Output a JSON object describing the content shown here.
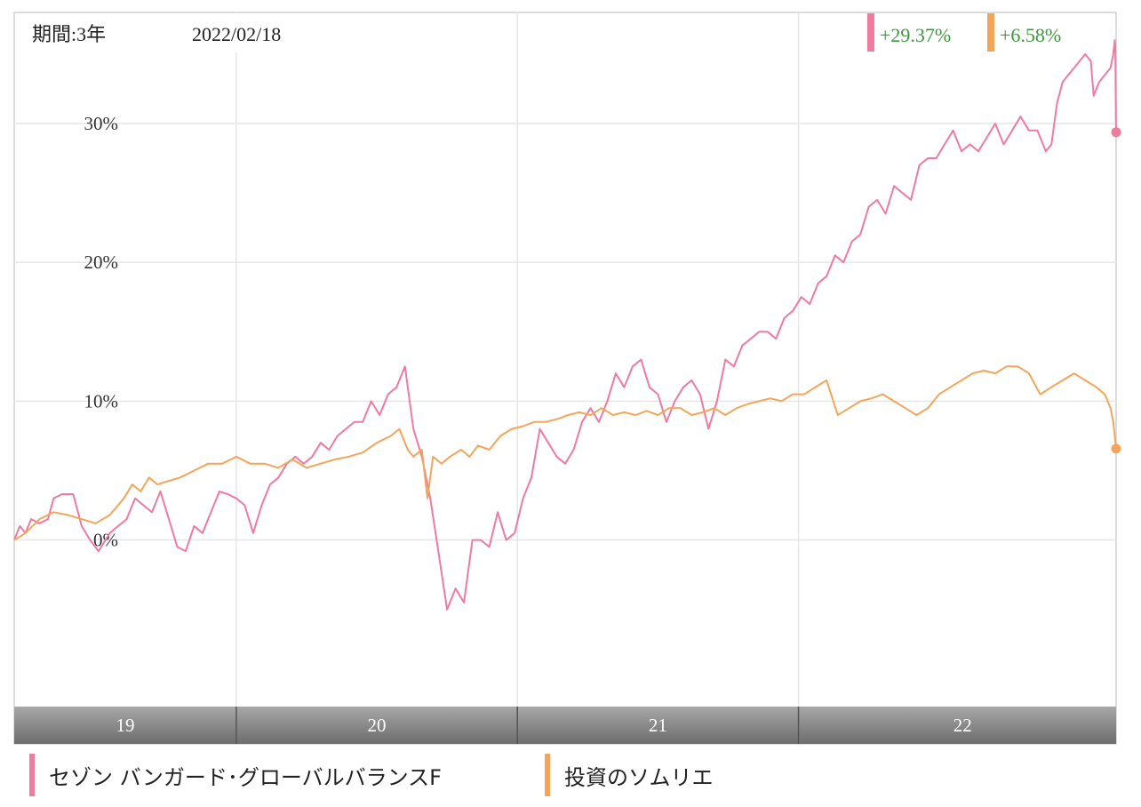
{
  "header": {
    "period_label": "期間:3年",
    "date": "2022/02/18"
  },
  "chart_data": {
    "type": "line",
    "ylim": [
      -12,
      38
    ],
    "yticks": [
      0,
      10,
      20,
      30
    ],
    "ytick_labels": [
      "0%",
      "10%",
      "20%",
      "30%"
    ],
    "xlim": [
      2018.21,
      2022.13
    ],
    "year_ticks": [
      {
        "label": "19",
        "start": 2018.21,
        "end": 2019.0
      },
      {
        "label": "20",
        "start": 2019.0,
        "end": 2020.0
      },
      {
        "label": "21",
        "start": 2020.0,
        "end": 2021.0
      },
      {
        "label": "22",
        "start": 2021.0,
        "end": 2022.13
      }
    ],
    "year_boundaries": [
      2019.0,
      2020.0,
      2021.0
    ],
    "series": [
      {
        "name": "セゾン バンガード･グローバルバランスF",
        "color": "#f07aa0",
        "final_return": "+29.37%",
        "points": [
          [
            2018.21,
            0.0
          ],
          [
            2018.23,
            1.0
          ],
          [
            2018.25,
            0.5
          ],
          [
            2018.27,
            1.5
          ],
          [
            2018.3,
            1.2
          ],
          [
            2018.33,
            1.5
          ],
          [
            2018.35,
            3.0
          ],
          [
            2018.38,
            3.3
          ],
          [
            2018.42,
            3.3
          ],
          [
            2018.45,
            1.0
          ],
          [
            2018.48,
            0.0
          ],
          [
            2018.51,
            -0.8
          ],
          [
            2018.55,
            0.5
          ],
          [
            2018.58,
            1.0
          ],
          [
            2018.61,
            1.5
          ],
          [
            2018.64,
            3.0
          ],
          [
            2018.67,
            2.5
          ],
          [
            2018.7,
            2.0
          ],
          [
            2018.73,
            3.5
          ],
          [
            2018.76,
            1.5
          ],
          [
            2018.79,
            -0.5
          ],
          [
            2018.82,
            -0.8
          ],
          [
            2018.85,
            1.0
          ],
          [
            2018.88,
            0.5
          ],
          [
            2018.91,
            2.0
          ],
          [
            2018.94,
            3.5
          ],
          [
            2018.97,
            3.3
          ],
          [
            2019.0,
            3.0
          ],
          [
            2019.03,
            2.5
          ],
          [
            2019.06,
            0.5
          ],
          [
            2019.09,
            2.5
          ],
          [
            2019.12,
            4.0
          ],
          [
            2019.15,
            4.5
          ],
          [
            2019.18,
            5.5
          ],
          [
            2019.21,
            6.0
          ],
          [
            2019.24,
            5.5
          ],
          [
            2019.27,
            6.0
          ],
          [
            2019.3,
            7.0
          ],
          [
            2019.33,
            6.5
          ],
          [
            2019.36,
            7.5
          ],
          [
            2019.39,
            8.0
          ],
          [
            2019.42,
            8.5
          ],
          [
            2019.45,
            8.5
          ],
          [
            2019.48,
            10.0
          ],
          [
            2019.51,
            9.0
          ],
          [
            2019.54,
            10.5
          ],
          [
            2019.57,
            11.0
          ],
          [
            2019.6,
            12.5
          ],
          [
            2019.63,
            8.0
          ],
          [
            2019.66,
            6.0
          ],
          [
            2019.69,
            3.0
          ],
          [
            2019.72,
            -1.0
          ],
          [
            2019.75,
            -5.0
          ],
          [
            2019.78,
            -3.5
          ],
          [
            2019.81,
            -4.5
          ],
          [
            2019.84,
            0.0
          ],
          [
            2019.87,
            0.0
          ],
          [
            2019.9,
            -0.5
          ],
          [
            2019.93,
            2.0
          ],
          [
            2019.96,
            0.0
          ],
          [
            2019.99,
            0.5
          ],
          [
            2020.02,
            3.0
          ],
          [
            2020.05,
            4.5
          ],
          [
            2020.08,
            8.0
          ],
          [
            2020.11,
            7.0
          ],
          [
            2020.14,
            6.0
          ],
          [
            2020.17,
            5.5
          ],
          [
            2020.2,
            6.5
          ],
          [
            2020.23,
            8.5
          ],
          [
            2020.26,
            9.5
          ],
          [
            2020.29,
            8.5
          ],
          [
            2020.32,
            10.0
          ],
          [
            2020.35,
            12.0
          ],
          [
            2020.38,
            11.0
          ],
          [
            2020.41,
            12.5
          ],
          [
            2020.44,
            13.0
          ],
          [
            2020.47,
            11.0
          ],
          [
            2020.5,
            10.5
          ],
          [
            2020.53,
            8.5
          ],
          [
            2020.56,
            10.0
          ],
          [
            2020.59,
            11.0
          ],
          [
            2020.62,
            11.5
          ],
          [
            2020.65,
            10.5
          ],
          [
            2020.68,
            8.0
          ],
          [
            2020.71,
            10.0
          ],
          [
            2020.74,
            13.0
          ],
          [
            2020.77,
            12.5
          ],
          [
            2020.8,
            14.0
          ],
          [
            2020.83,
            14.5
          ],
          [
            2020.86,
            15.0
          ],
          [
            2020.89,
            15.0
          ],
          [
            2020.92,
            14.5
          ],
          [
            2020.95,
            16.0
          ],
          [
            2020.98,
            16.5
          ],
          [
            2021.01,
            17.5
          ],
          [
            2021.04,
            17.0
          ],
          [
            2021.07,
            18.5
          ],
          [
            2021.1,
            19.0
          ],
          [
            2021.13,
            20.5
          ],
          [
            2021.16,
            20.0
          ],
          [
            2021.19,
            21.5
          ],
          [
            2021.22,
            22.0
          ],
          [
            2021.25,
            24.0
          ],
          [
            2021.28,
            24.5
          ],
          [
            2021.31,
            23.5
          ],
          [
            2021.34,
            25.5
          ],
          [
            2021.37,
            25.0
          ],
          [
            2021.4,
            24.5
          ],
          [
            2021.43,
            27.0
          ],
          [
            2021.46,
            27.5
          ],
          [
            2021.49,
            27.5
          ],
          [
            2021.52,
            28.5
          ],
          [
            2021.55,
            29.5
          ],
          [
            2021.58,
            28.0
          ],
          [
            2021.61,
            28.5
          ],
          [
            2021.64,
            28.0
          ],
          [
            2021.67,
            29.0
          ],
          [
            2021.7,
            30.0
          ],
          [
            2021.73,
            28.5
          ],
          [
            2021.76,
            29.5
          ],
          [
            2021.79,
            30.5
          ],
          [
            2021.82,
            29.5
          ],
          [
            2021.85,
            29.5
          ],
          [
            2021.88,
            28.0
          ],
          [
            2021.9,
            28.5
          ],
          [
            2021.92,
            31.5
          ],
          [
            2021.94,
            33.0
          ],
          [
            2021.96,
            33.5
          ],
          [
            2021.98,
            34.0
          ],
          [
            2022.0,
            34.5
          ],
          [
            2022.02,
            35.0
          ],
          [
            2022.04,
            34.5
          ],
          [
            2022.05,
            32.0
          ],
          [
            2022.07,
            33.0
          ],
          [
            2022.09,
            33.5
          ],
          [
            2022.11,
            34.0
          ],
          [
            2022.12,
            35.0
          ],
          [
            2022.125,
            36.0
          ],
          [
            2022.127,
            35.5
          ],
          [
            2022.128,
            33.5
          ],
          [
            2022.129,
            30.5
          ],
          [
            2022.13,
            29.37
          ]
        ]
      },
      {
        "name": "投資のソムリエ",
        "color": "#f5a55a",
        "final_return": "+6.58%",
        "points": [
          [
            2018.21,
            0.0
          ],
          [
            2018.25,
            0.5
          ],
          [
            2018.3,
            1.5
          ],
          [
            2018.35,
            2.0
          ],
          [
            2018.4,
            1.8
          ],
          [
            2018.45,
            1.5
          ],
          [
            2018.5,
            1.2
          ],
          [
            2018.55,
            1.8
          ],
          [
            2018.6,
            3.0
          ],
          [
            2018.63,
            4.0
          ],
          [
            2018.66,
            3.5
          ],
          [
            2018.69,
            4.5
          ],
          [
            2018.72,
            4.0
          ],
          [
            2018.75,
            4.2
          ],
          [
            2018.8,
            4.5
          ],
          [
            2018.85,
            5.0
          ],
          [
            2018.9,
            5.5
          ],
          [
            2018.95,
            5.5
          ],
          [
            2019.0,
            6.0
          ],
          [
            2019.05,
            5.5
          ],
          [
            2019.1,
            5.5
          ],
          [
            2019.15,
            5.2
          ],
          [
            2019.2,
            5.8
          ],
          [
            2019.25,
            5.2
          ],
          [
            2019.3,
            5.5
          ],
          [
            2019.35,
            5.8
          ],
          [
            2019.4,
            6.0
          ],
          [
            2019.45,
            6.3
          ],
          [
            2019.5,
            7.0
          ],
          [
            2019.55,
            7.5
          ],
          [
            2019.58,
            8.0
          ],
          [
            2019.61,
            6.5
          ],
          [
            2019.63,
            6.0
          ],
          [
            2019.66,
            6.5
          ],
          [
            2019.68,
            3.0
          ],
          [
            2019.7,
            6.0
          ],
          [
            2019.73,
            5.5
          ],
          [
            2019.76,
            6.0
          ],
          [
            2019.8,
            6.5
          ],
          [
            2019.83,
            6.0
          ],
          [
            2019.86,
            6.8
          ],
          [
            2019.9,
            6.5
          ],
          [
            2019.94,
            7.5
          ],
          [
            2019.98,
            8.0
          ],
          [
            2020.02,
            8.2
          ],
          [
            2020.06,
            8.5
          ],
          [
            2020.1,
            8.5
          ],
          [
            2020.14,
            8.7
          ],
          [
            2020.18,
            9.0
          ],
          [
            2020.22,
            9.2
          ],
          [
            2020.26,
            9.0
          ],
          [
            2020.3,
            9.5
          ],
          [
            2020.34,
            9.0
          ],
          [
            2020.38,
            9.2
          ],
          [
            2020.42,
            9.0
          ],
          [
            2020.46,
            9.3
          ],
          [
            2020.5,
            9.0
          ],
          [
            2020.54,
            9.5
          ],
          [
            2020.58,
            9.5
          ],
          [
            2020.62,
            9.0
          ],
          [
            2020.66,
            9.2
          ],
          [
            2020.7,
            9.5
          ],
          [
            2020.74,
            9.0
          ],
          [
            2020.78,
            9.5
          ],
          [
            2020.82,
            9.8
          ],
          [
            2020.86,
            10.0
          ],
          [
            2020.9,
            10.2
          ],
          [
            2020.94,
            10.0
          ],
          [
            2020.98,
            10.5
          ],
          [
            2021.02,
            10.5
          ],
          [
            2021.06,
            11.0
          ],
          [
            2021.1,
            11.5
          ],
          [
            2021.14,
            9.0
          ],
          [
            2021.18,
            9.5
          ],
          [
            2021.22,
            10.0
          ],
          [
            2021.26,
            10.2
          ],
          [
            2021.3,
            10.5
          ],
          [
            2021.34,
            10.0
          ],
          [
            2021.38,
            9.5
          ],
          [
            2021.42,
            9.0
          ],
          [
            2021.46,
            9.5
          ],
          [
            2021.5,
            10.5
          ],
          [
            2021.54,
            11.0
          ],
          [
            2021.58,
            11.5
          ],
          [
            2021.62,
            12.0
          ],
          [
            2021.66,
            12.2
          ],
          [
            2021.7,
            12.0
          ],
          [
            2021.74,
            12.5
          ],
          [
            2021.78,
            12.5
          ],
          [
            2021.82,
            12.0
          ],
          [
            2021.86,
            10.5
          ],
          [
            2021.9,
            11.0
          ],
          [
            2021.94,
            11.5
          ],
          [
            2021.98,
            12.0
          ],
          [
            2022.02,
            11.5
          ],
          [
            2022.06,
            11.0
          ],
          [
            2022.09,
            10.5
          ],
          [
            2022.11,
            9.5
          ],
          [
            2022.12,
            8.5
          ],
          [
            2022.13,
            6.58
          ]
        ]
      }
    ]
  }
}
